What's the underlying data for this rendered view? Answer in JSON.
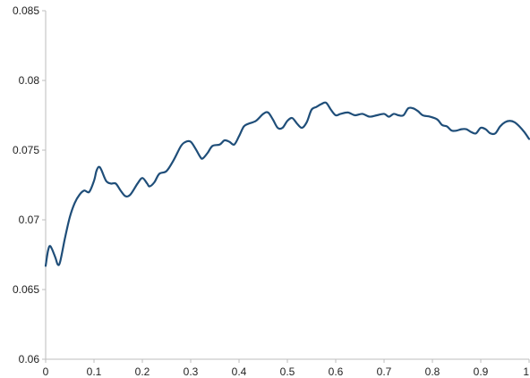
{
  "colors": {
    "series": "#1f4e79",
    "axis": "#bdbdbd",
    "text": "#222222"
  },
  "chart_data": {
    "type": "line",
    "title": "",
    "xlabel": "",
    "ylabel": "",
    "xlim": [
      0,
      1
    ],
    "ylim": [
      0.06,
      0.085
    ],
    "grid": false,
    "legend": "none",
    "x_ticks": [
      {
        "value": 0,
        "label": "0"
      },
      {
        "value": 0.1,
        "label": "0.1"
      },
      {
        "value": 0.2,
        "label": "0.2"
      },
      {
        "value": 0.3,
        "label": "0.3"
      },
      {
        "value": 0.4,
        "label": "0.4"
      },
      {
        "value": 0.5,
        "label": "0.5"
      },
      {
        "value": 0.6,
        "label": "0.6"
      },
      {
        "value": 0.7,
        "label": "0.7"
      },
      {
        "value": 0.8,
        "label": "0.8"
      },
      {
        "value": 0.9,
        "label": "0.9"
      },
      {
        "value": 1,
        "label": "1"
      }
    ],
    "y_ticks": [
      {
        "value": 0.06,
        "label": "0.06"
      },
      {
        "value": 0.065,
        "label": "0.065"
      },
      {
        "value": 0.07,
        "label": "0.07"
      },
      {
        "value": 0.075,
        "label": "0.075"
      },
      {
        "value": 0.08,
        "label": "0.08"
      },
      {
        "value": 0.085,
        "label": "0.085"
      }
    ],
    "series": [
      {
        "points": [
          [
            0.0,
            0.0667
          ],
          [
            0.005,
            0.0678
          ],
          [
            0.01,
            0.0681
          ],
          [
            0.02,
            0.0673
          ],
          [
            0.025,
            0.0668
          ],
          [
            0.03,
            0.067
          ],
          [
            0.04,
            0.0687
          ],
          [
            0.05,
            0.0702
          ],
          [
            0.06,
            0.0712
          ],
          [
            0.07,
            0.0718
          ],
          [
            0.08,
            0.0721
          ],
          [
            0.09,
            0.072
          ],
          [
            0.1,
            0.0728
          ],
          [
            0.105,
            0.0735
          ],
          [
            0.11,
            0.0738
          ],
          [
            0.115,
            0.0736
          ],
          [
            0.125,
            0.0728
          ],
          [
            0.135,
            0.0726
          ],
          [
            0.145,
            0.0726
          ],
          [
            0.155,
            0.0721
          ],
          [
            0.165,
            0.0717
          ],
          [
            0.175,
            0.0718
          ],
          [
            0.19,
            0.0726
          ],
          [
            0.2,
            0.073
          ],
          [
            0.21,
            0.0726
          ],
          [
            0.215,
            0.0724
          ],
          [
            0.225,
            0.0727
          ],
          [
            0.235,
            0.0733
          ],
          [
            0.25,
            0.0735
          ],
          [
            0.265,
            0.0743
          ],
          [
            0.28,
            0.0753
          ],
          [
            0.29,
            0.0756
          ],
          [
            0.3,
            0.0756
          ],
          [
            0.31,
            0.0751
          ],
          [
            0.32,
            0.0745
          ],
          [
            0.325,
            0.0744
          ],
          [
            0.335,
            0.0748
          ],
          [
            0.345,
            0.0753
          ],
          [
            0.36,
            0.0754
          ],
          [
            0.37,
            0.0757
          ],
          [
            0.38,
            0.0756
          ],
          [
            0.39,
            0.0754
          ],
          [
            0.4,
            0.076
          ],
          [
            0.41,
            0.0767
          ],
          [
            0.42,
            0.0769
          ],
          [
            0.435,
            0.0771
          ],
          [
            0.45,
            0.0776
          ],
          [
            0.46,
            0.0777
          ],
          [
            0.47,
            0.0772
          ],
          [
            0.48,
            0.0766
          ],
          [
            0.49,
            0.0766
          ],
          [
            0.5,
            0.0771
          ],
          [
            0.51,
            0.0773
          ],
          [
            0.52,
            0.0769
          ],
          [
            0.53,
            0.0766
          ],
          [
            0.54,
            0.077
          ],
          [
            0.55,
            0.0779
          ],
          [
            0.56,
            0.0781
          ],
          [
            0.57,
            0.0783
          ],
          [
            0.58,
            0.0784
          ],
          [
            0.59,
            0.0779
          ],
          [
            0.6,
            0.0775
          ],
          [
            0.61,
            0.0776
          ],
          [
            0.625,
            0.0777
          ],
          [
            0.64,
            0.0775
          ],
          [
            0.655,
            0.0776
          ],
          [
            0.67,
            0.0774
          ],
          [
            0.685,
            0.0775
          ],
          [
            0.7,
            0.0776
          ],
          [
            0.71,
            0.0774
          ],
          [
            0.72,
            0.0776
          ],
          [
            0.73,
            0.0775
          ],
          [
            0.74,
            0.0775
          ],
          [
            0.75,
            0.078
          ],
          [
            0.76,
            0.078
          ],
          [
            0.77,
            0.0778
          ],
          [
            0.78,
            0.0775
          ],
          [
            0.795,
            0.0774
          ],
          [
            0.81,
            0.0772
          ],
          [
            0.82,
            0.0768
          ],
          [
            0.83,
            0.0767
          ],
          [
            0.84,
            0.0764
          ],
          [
            0.85,
            0.0764
          ],
          [
            0.86,
            0.0765
          ],
          [
            0.87,
            0.0765
          ],
          [
            0.88,
            0.0763
          ],
          [
            0.89,
            0.0762
          ],
          [
            0.9,
            0.0766
          ],
          [
            0.91,
            0.0765
          ],
          [
            0.92,
            0.0762
          ],
          [
            0.93,
            0.0762
          ],
          [
            0.94,
            0.0767
          ],
          [
            0.95,
            0.077
          ],
          [
            0.96,
            0.0771
          ],
          [
            0.97,
            0.077
          ],
          [
            0.98,
            0.0767
          ],
          [
            0.99,
            0.0763
          ],
          [
            1.0,
            0.0758
          ]
        ]
      }
    ]
  }
}
